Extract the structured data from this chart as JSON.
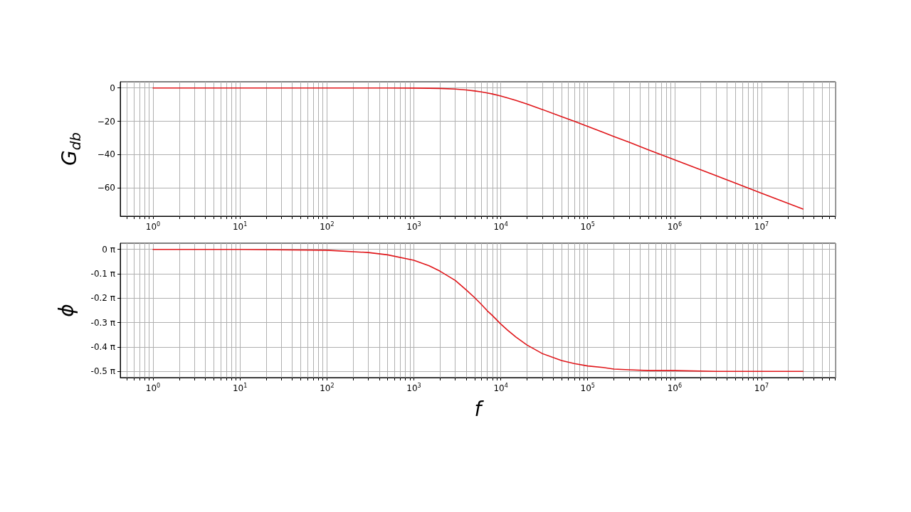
{
  "chart_data": [
    {
      "type": "line",
      "ylabel": "G$_{db}$",
      "log": "x",
      "grid": true,
      "color": "#e0161a",
      "x": [
        1,
        10,
        100,
        300,
        500,
        1000,
        1500,
        2000,
        3000,
        4000,
        5000,
        6000,
        7000,
        8000,
        10000,
        12000,
        15000,
        20000,
        30000,
        50000,
        70000,
        100000,
        150000,
        200000,
        300000,
        500000,
        1000000,
        3000000,
        10000000,
        30000000
      ],
      "values": [
        0,
        0,
        0,
        0,
        0,
        -0.1,
        -0.2,
        -0.3,
        -0.7,
        -1.2,
        -1.8,
        -2.4,
        -3.0,
        -3.6,
        -4.8,
        -6.0,
        -7.5,
        -9.6,
        -12.9,
        -17.2,
        -20.0,
        -23.1,
        -26.6,
        -29.1,
        -32.6,
        -37.1,
        -43.1,
        -52.6,
        -63.1,
        -72.6
      ],
      "xlim": [
        0.42,
        71000000
      ],
      "xticks": [
        {
          "value": 0.5,
          "label": null
        },
        {
          "value": 0.6,
          "label": null
        },
        {
          "value": 0.7,
          "label": null
        },
        {
          "value": 0.8,
          "label": null
        },
        {
          "value": 0.9,
          "label": null
        },
        {
          "value": 1,
          "label": "10$^{0}$"
        },
        {
          "value": 2,
          "label": null
        },
        {
          "value": 3,
          "label": null
        },
        {
          "value": 4,
          "label": null
        },
        {
          "value": 5,
          "label": null
        },
        {
          "value": 6,
          "label": null
        },
        {
          "value": 7,
          "label": null
        },
        {
          "value": 8,
          "label": null
        },
        {
          "value": 9,
          "label": null
        },
        {
          "value": 10,
          "label": "10$^{1}$"
        },
        {
          "value": 20,
          "label": null
        },
        {
          "value": 30,
          "label": null
        },
        {
          "value": 40,
          "label": null
        },
        {
          "value": 50,
          "label": null
        },
        {
          "value": 60,
          "label": null
        },
        {
          "value": 70,
          "label": null
        },
        {
          "value": 80,
          "label": null
        },
        {
          "value": 90,
          "label": null
        },
        {
          "value": 100,
          "label": "10$^{2}$"
        },
        {
          "value": 200,
          "label": null
        },
        {
          "value": 300,
          "label": null
        },
        {
          "value": 400,
          "label": null
        },
        {
          "value": 500,
          "label": null
        },
        {
          "value": 600,
          "label": null
        },
        {
          "value": 700,
          "label": null
        },
        {
          "value": 800,
          "label": null
        },
        {
          "value": 900,
          "label": null
        },
        {
          "value": 1000,
          "label": "10$^{3}$"
        },
        {
          "value": 2000,
          "label": null
        },
        {
          "value": 3000,
          "label": null
        },
        {
          "value": 4000,
          "label": null
        },
        {
          "value": 5000,
          "label": null
        },
        {
          "value": 6000,
          "label": null
        },
        {
          "value": 7000,
          "label": null
        },
        {
          "value": 8000,
          "label": null
        },
        {
          "value": 9000,
          "label": null
        },
        {
          "value": 10000,
          "label": "10$^{4}$"
        },
        {
          "value": 20000,
          "label": null
        },
        {
          "value": 30000,
          "label": null
        },
        {
          "value": 40000,
          "label": null
        },
        {
          "value": 50000,
          "label": null
        },
        {
          "value": 60000,
          "label": null
        },
        {
          "value": 70000,
          "label": null
        },
        {
          "value": 80000,
          "label": null
        },
        {
          "value": 90000,
          "label": null
        },
        {
          "value": 100000,
          "label": "10$^{5}$"
        },
        {
          "value": 200000,
          "label": null
        },
        {
          "value": 300000,
          "label": null
        },
        {
          "value": 400000,
          "label": null
        },
        {
          "value": 500000,
          "label": null
        },
        {
          "value": 600000,
          "label": null
        },
        {
          "value": 700000,
          "label": null
        },
        {
          "value": 800000,
          "label": null
        },
        {
          "value": 900000,
          "label": null
        },
        {
          "value": 1000000,
          "label": "10$^{6}$"
        },
        {
          "value": 2000000,
          "label": null
        },
        {
          "value": 3000000,
          "label": null
        },
        {
          "value": 4000000,
          "label": null
        },
        {
          "value": 5000000,
          "label": null
        },
        {
          "value": 6000000,
          "label": null
        },
        {
          "value": 7000000,
          "label": null
        },
        {
          "value": 8000000,
          "label": null
        },
        {
          "value": 9000000,
          "label": null
        },
        {
          "value": 10000000,
          "label": "10$^{7}$"
        },
        {
          "value": 20000000,
          "label": null
        },
        {
          "value": 30000000,
          "label": null
        },
        {
          "value": 40000000,
          "label": null
        },
        {
          "value": 50000000,
          "label": null
        },
        {
          "value": 60000000,
          "label": null
        },
        {
          "value": 70000000,
          "label": null
        }
      ],
      "ylim": [
        -76.9,
        3.7
      ],
      "yticks": [
        {
          "value": -60,
          "label": "−60"
        },
        {
          "value": -40,
          "label": "−40"
        },
        {
          "value": -20,
          "label": "−20"
        },
        0
      ]
    },
    {
      "type": "line",
      "ylabel": "ϕ",
      "xlabel": "f",
      "log": "x",
      "grid": true,
      "color": "#e0161a",
      "x": [
        1,
        10,
        100,
        300,
        500,
        1000,
        1500,
        2000,
        3000,
        4000,
        5000,
        6000,
        7000,
        8000,
        10000,
        12000,
        15000,
        20000,
        30000,
        50000,
        70000,
        100000,
        150000,
        200000,
        300000,
        500000,
        1000000,
        3000000,
        10000000,
        30000000
      ],
      "values": [
        0,
        0,
        -0.01,
        -0.04,
        -0.07,
        -0.14,
        -0.21,
        -0.28,
        -0.4,
        -0.52,
        -0.62,
        -0.71,
        -0.79,
        -0.85,
        -0.96,
        -1.04,
        -1.13,
        -1.23,
        -1.34,
        -1.43,
        -1.47,
        -1.5,
        -1.52,
        -1.54,
        -1.55,
        -1.56,
        -1.56,
        -1.57,
        -1.57,
        -1.57
      ],
      "xlim": [
        0.42,
        71000000
      ],
      "xticks": [
        {
          "value": 0.5,
          "label": null
        },
        {
          "value": 0.6,
          "label": null
        },
        {
          "value": 0.7,
          "label": null
        },
        {
          "value": 0.8,
          "label": null
        },
        {
          "value": 0.9,
          "label": null
        },
        {
          "value": 1,
          "label": "10$^{0}$"
        },
        {
          "value": 2,
          "label": null
        },
        {
          "value": 3,
          "label": null
        },
        {
          "value": 4,
          "label": null
        },
        {
          "value": 5,
          "label": null
        },
        {
          "value": 6,
          "label": null
        },
        {
          "value": 7,
          "label": null
        },
        {
          "value": 8,
          "label": null
        },
        {
          "value": 9,
          "label": null
        },
        {
          "value": 10,
          "label": "10$^{1}$"
        },
        {
          "value": 20,
          "label": null
        },
        {
          "value": 30,
          "label": null
        },
        {
          "value": 40,
          "label": null
        },
        {
          "value": 50,
          "label": null
        },
        {
          "value": 60,
          "label": null
        },
        {
          "value": 70,
          "label": null
        },
        {
          "value": 80,
          "label": null
        },
        {
          "value": 90,
          "label": null
        },
        {
          "value": 100,
          "label": "10$^{2}$"
        },
        {
          "value": 200,
          "label": null
        },
        {
          "value": 300,
          "label": null
        },
        {
          "value": 400,
          "label": null
        },
        {
          "value": 500,
          "label": null
        },
        {
          "value": 600,
          "label": null
        },
        {
          "value": 700,
          "label": null
        },
        {
          "value": 800,
          "label": null
        },
        {
          "value": 900,
          "label": null
        },
        {
          "value": 1000,
          "label": "10$^{3}$"
        },
        {
          "value": 2000,
          "label": null
        },
        {
          "value": 3000,
          "label": null
        },
        {
          "value": 4000,
          "label": null
        },
        {
          "value": 5000,
          "label": null
        },
        {
          "value": 6000,
          "label": null
        },
        {
          "value": 7000,
          "label": null
        },
        {
          "value": 8000,
          "label": null
        },
        {
          "value": 9000,
          "label": null
        },
        {
          "value": 10000,
          "label": "10$^{4}$"
        },
        {
          "value": 20000,
          "label": null
        },
        {
          "value": 30000,
          "label": null
        },
        {
          "value": 40000,
          "label": null
        },
        {
          "value": 50000,
          "label": null
        },
        {
          "value": 60000,
          "label": null
        },
        {
          "value": 70000,
          "label": null
        },
        {
          "value": 80000,
          "label": null
        },
        {
          "value": 90000,
          "label": null
        },
        {
          "value": 100000,
          "label": "10$^{5}$"
        },
        {
          "value": 200000,
          "label": null
        },
        {
          "value": 300000,
          "label": null
        },
        {
          "value": 400000,
          "label": null
        },
        {
          "value": 500000,
          "label": null
        },
        {
          "value": 600000,
          "label": null
        },
        {
          "value": 700000,
          "label": null
        },
        {
          "value": 800000,
          "label": null
        },
        {
          "value": 900000,
          "label": null
        },
        {
          "value": 1000000,
          "label": "10$^{6}$"
        },
        {
          "value": 2000000,
          "label": null
        },
        {
          "value": 3000000,
          "label": null
        },
        {
          "value": 4000000,
          "label": null
        },
        {
          "value": 5000000,
          "label": null
        },
        {
          "value": 6000000,
          "label": null
        },
        {
          "value": 7000000,
          "label": null
        },
        {
          "value": 8000000,
          "label": null
        },
        {
          "value": 9000000,
          "label": null
        },
        {
          "value": 10000000,
          "label": "10$^{7}$"
        },
        {
          "value": 20000000,
          "label": null
        },
        {
          "value": 30000000,
          "label": null
        },
        {
          "value": 40000000,
          "label": null
        },
        {
          "value": 50000000,
          "label": null
        },
        {
          "value": 60000000,
          "label": null
        },
        {
          "value": 70000000,
          "label": null
        }
      ],
      "ylim": [
        -1.65,
        0.08
      ],
      "yticks": [
        {
          "value": -1.5708,
          "label": "-0.5 π"
        },
        {
          "value": -1.25664,
          "label": "-0.4 π"
        },
        {
          "value": -0.94248,
          "label": "-0.3 π"
        },
        {
          "value": -0.62832,
          "label": "-0.2 π"
        },
        {
          "value": -0.31416,
          "label": "-0.1 π"
        },
        {
          "value": 0,
          "label": "0 π"
        }
      ]
    }
  ]
}
